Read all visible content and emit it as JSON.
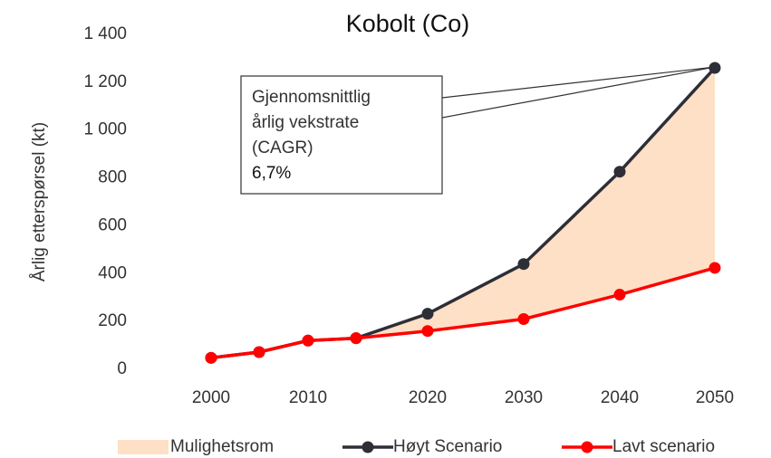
{
  "chart_data": {
    "type": "line",
    "title": "Kobolt (Co)",
    "ylabel": "Årlig etterspørsel (kt)",
    "categories": [
      "2000",
      null,
      "2010",
      null,
      "2020",
      "2030",
      "2040",
      "2050"
    ],
    "ylim": [
      0,
      1400
    ],
    "yticks": [
      0,
      200,
      400,
      600,
      800,
      {
        "value": 1000,
        "label": "1 000"
      },
      {
        "value": 1200,
        "label": "1 200"
      },
      {
        "value": 1400,
        "label": "1 400"
      }
    ],
    "area": {
      "name": "Mulighetsrom",
      "color": "#fde0c5"
    },
    "series": [
      {
        "name": "Høyt Scenario",
        "color": "#2e2e38",
        "values": [
          48,
          72,
          120,
          130,
          232,
          440,
          826,
          1260
        ]
      },
      {
        "name": "Lavt scenario",
        "color": "#ff0000",
        "values": [
          48,
          72,
          120,
          130,
          160,
          210,
          312,
          424
        ]
      }
    ],
    "annotation": [
      "Gjennomsnittlig",
      "årlig vekstrate",
      "(CAGR)",
      "6,7%"
    ],
    "grid": false
  }
}
